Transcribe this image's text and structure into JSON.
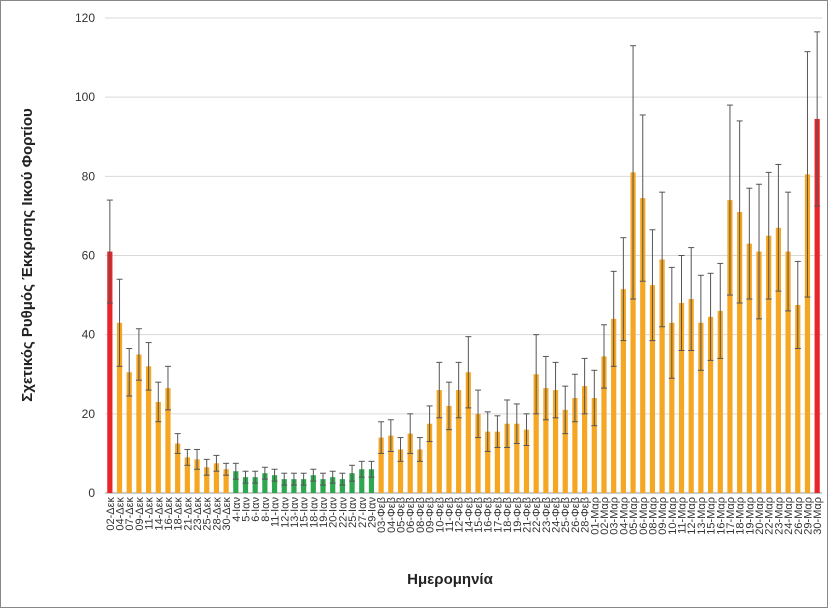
{
  "chart_data": {
    "type": "bar",
    "y_label": "Σχετικός Ρυθμός Έκκρισης Ιικού Φορτίου",
    "x_label": "Ημερομηνία",
    "categories": [
      "02-Δεκ",
      "04-Δεκ",
      "07-Δεκ",
      "09-Δεκ",
      "11-Δεκ",
      "14-Δεκ",
      "16-Δεκ",
      "18-Δεκ",
      "21-Δεκ",
      "23-Δεκ",
      "25-Δεκ",
      "28-Δεκ",
      "30-Δεκ",
      "4-Ιαν",
      "5-Ιαν",
      "6-Ιαν",
      "8-Ιαν",
      "11-Ιαν",
      "12-Ιαν",
      "13-Ιαν",
      "15-Ιαν",
      "18-Ιαν",
      "19-Ιαν",
      "20-Ιαν",
      "22-Ιαν",
      "25-Ιαν",
      "27-Ιαν",
      "29-Ιαν",
      "03-Φεβ",
      "04-Φεβ",
      "05-Φεβ",
      "06-Φεβ",
      "08-Φεβ",
      "09-Φεβ",
      "10-Φεβ",
      "11-Φεβ",
      "12-Φεβ",
      "14-Φεβ",
      "15-Φεβ",
      "16-Φεβ",
      "17-Φεβ",
      "18-Φεβ",
      "19-Φεβ",
      "21-Φεβ",
      "22-Φεβ",
      "23-Φεβ",
      "24-Φεβ",
      "25-Φεβ",
      "26-Φεβ",
      "28-Φεβ",
      "01-Μαρ",
      "02-Μαρ",
      "03-Μαρ",
      "04-Μαρ",
      "05-Μαρ",
      "06-Μαρ",
      "08-Μαρ",
      "09-Μαρ",
      "10-Μαρ",
      "11-Μαρ",
      "12-Μαρ",
      "13-Μαρ",
      "15-Μαρ",
      "16-Μαρ",
      "17-Μαρ",
      "18-Μαρ",
      "19-Μαρ",
      "20-Μαρ",
      "22-Μαρ",
      "23-Μαρ",
      "24-Μαρ",
      "26-Μαρ",
      "29-Μαρ",
      "30-Μαρ"
    ],
    "values": [
      61,
      43,
      30.5,
      35,
      32,
      23,
      26.5,
      12.5,
      9,
      8.5,
      6.5,
      7.5,
      6,
      5.5,
      4,
      4,
      5,
      4.5,
      3.5,
      3.5,
      3.5,
      4.5,
      3.5,
      4,
      3.5,
      5,
      6,
      6,
      14,
      14.5,
      11,
      15,
      11,
      17.5,
      26,
      22,
      26,
      30.5,
      20,
      15.5,
      15.5,
      17.5,
      17.5,
      16,
      30,
      26.5,
      26,
      21,
      24,
      27,
      24,
      34.5,
      44,
      51.5,
      81,
      74.5,
      52.5,
      59,
      43,
      48,
      49,
      43,
      44.5,
      46,
      74,
      71,
      63,
      61,
      65,
      67,
      61,
      47.5,
      80.5,
      94.5
    ],
    "errors": [
      13,
      11,
      6,
      6.5,
      6,
      5,
      5.5,
      2.5,
      2,
      2.5,
      2,
      2,
      1.5,
      2,
      1.5,
      1.5,
      1.5,
      1.5,
      1.5,
      1.5,
      1.5,
      1.5,
      1.5,
      1.5,
      1.5,
      2,
      2,
      2,
      4,
      4,
      3,
      5,
      3,
      4.5,
      7,
      6,
      7,
      9,
      6,
      5,
      4,
      6,
      5,
      4,
      10,
      8,
      7,
      6,
      6,
      7,
      7,
      8,
      12,
      13,
      32,
      21,
      14,
      17,
      14,
      12,
      13,
      12,
      11,
      12,
      24,
      23,
      14,
      17,
      16,
      16,
      15,
      11,
      31,
      22
    ],
    "colors": [
      "#e8262a",
      "#f5a623",
      "#f5a623",
      "#f5a623",
      "#f5a623",
      "#f5a623",
      "#f5a623",
      "#f5a623",
      "#f5a623",
      "#f5a623",
      "#f5a623",
      "#f5a623",
      "#f5a623",
      "#2ea84f",
      "#2ea84f",
      "#2ea84f",
      "#2ea84f",
      "#2ea84f",
      "#2ea84f",
      "#2ea84f",
      "#2ea84f",
      "#2ea84f",
      "#2ea84f",
      "#2ea84f",
      "#2ea84f",
      "#2ea84f",
      "#2ea84f",
      "#2ea84f",
      "#f5a623",
      "#f5a623",
      "#f5a623",
      "#f5a623",
      "#f5a623",
      "#f5a623",
      "#f5a623",
      "#f5a623",
      "#f5a623",
      "#f5a623",
      "#f5a623",
      "#f5a623",
      "#f5a623",
      "#f5a623",
      "#f5a623",
      "#f5a623",
      "#f5a623",
      "#f5a623",
      "#f5a623",
      "#f5a623",
      "#f5a623",
      "#f5a623",
      "#f5a623",
      "#f5a623",
      "#f5a623",
      "#f5a623",
      "#f5a623",
      "#f5a623",
      "#f5a623",
      "#f5a623",
      "#f5a623",
      "#f5a623",
      "#f5a623",
      "#f5a623",
      "#f5a623",
      "#f5a623",
      "#f5a623",
      "#f5a623",
      "#f5a623",
      "#f5a623",
      "#f5a623",
      "#f5a623",
      "#f5a623",
      "#f5a623",
      "#f5a623",
      "#e8262a"
    ],
    "ylim": [
      0,
      120
    ],
    "yticks": [
      0,
      20,
      40,
      60,
      80,
      100,
      120
    ],
    "grid": true
  }
}
